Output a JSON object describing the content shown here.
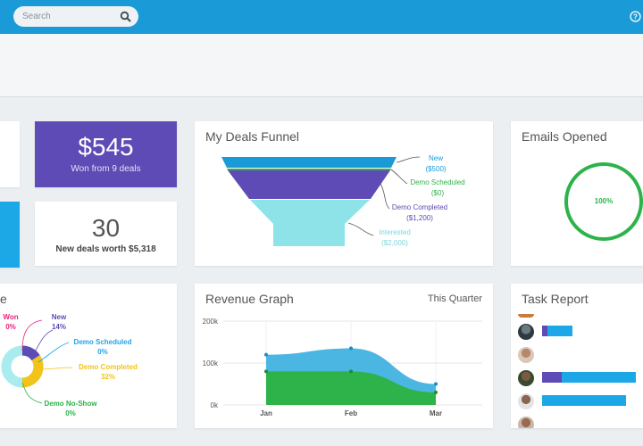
{
  "header": {
    "search": {
      "placeholder": "Search"
    },
    "help_icon": "help-icon"
  },
  "stats": {
    "won_value": "$545",
    "won_caption": "Won from 9 deals",
    "new_value": "30",
    "new_caption": "New deals worth $5,318"
  },
  "funnel": {
    "title": "My Deals Funnel",
    "stages": [
      {
        "name": "New",
        "amount": "($500)",
        "color": "#1a9ad6"
      },
      {
        "name": "Demo Scheduled",
        "amount": "($0)",
        "color": "#2db34a"
      },
      {
        "name": "Demo Completed",
        "amount": "($1,200)",
        "color": "#5e4bb5"
      },
      {
        "name": "Interested",
        "amount": "($2,000)",
        "color": "#8ee3e8"
      }
    ]
  },
  "emails": {
    "title": "Emails Opened",
    "percent": "100%",
    "ring_color": "#2db34a"
  },
  "pipeline": {
    "labels": [
      {
        "name": "Won",
        "value": "0%",
        "color": "#e8237b"
      },
      {
        "name": "New",
        "value": "14%",
        "color": "#5e4bb5"
      },
      {
        "name": "Demo Scheduled",
        "value": "0%",
        "color": "#1ca7e6"
      },
      {
        "name": "Demo Completed",
        "value": "32%",
        "color": "#f2c318"
      },
      {
        "name": "Demo No-Show",
        "value": "0%",
        "color": "#2db34a"
      }
    ]
  },
  "revenue": {
    "title": "Revenue Graph",
    "period": "This Quarter"
  },
  "tasks": {
    "title": "Task Report",
    "rows": [
      {
        "purple": 0.05,
        "blue": 0.25
      },
      {
        "purple": 0,
        "blue": 0
      },
      {
        "purple": 0.2,
        "blue": 0.75
      },
      {
        "purple": 0,
        "blue": 0.85
      }
    ]
  },
  "chart_data": {
    "type": "area",
    "title": "Revenue Graph",
    "x": [
      "Jan",
      "Feb",
      "Mar"
    ],
    "yticks": [
      "0k",
      "100k",
      "200k"
    ],
    "ylim": [
      0,
      200
    ],
    "series": [
      {
        "name": "",
        "color": "#39aee0",
        "values": [
          120,
          135,
          50
        ]
      },
      {
        "name": "",
        "color": "#2db34a",
        "values": [
          80,
          80,
          30
        ]
      }
    ],
    "grid": true
  }
}
